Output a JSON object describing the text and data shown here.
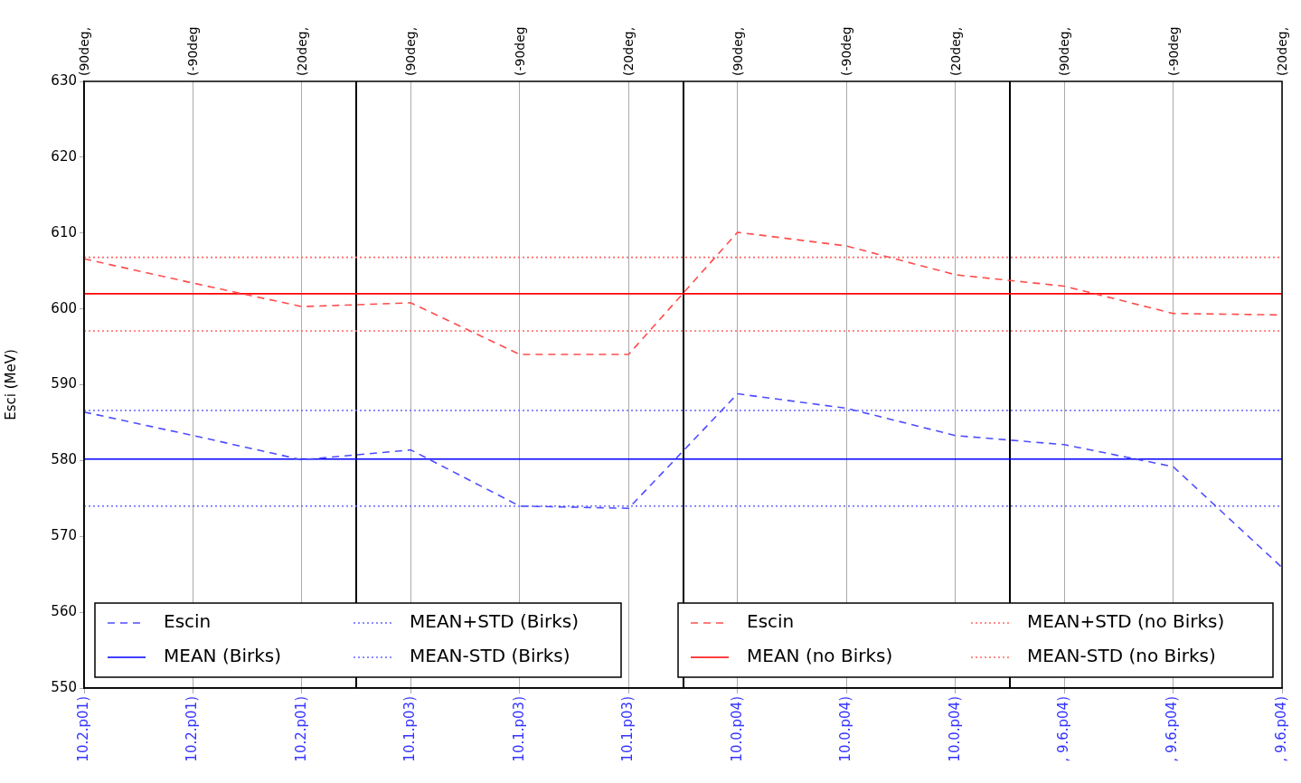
{
  "chart_data": {
    "type": "line",
    "ylabel": "Esci (MeV)",
    "categories": [
      "10.2.p01)",
      "10.2.p01)",
      "10.2.p01)",
      "10.1.p03)",
      "10.1.p03)",
      "10.1.p03)",
      "10.0.p04)",
      "10.0.p04)",
      "10.0.p04)",
      ", 9.6.p04)",
      ", 9.6.p04)",
      ", 9.6.p04)"
    ],
    "annotations": [
      "(90deg,",
      "(-90deg",
      "(20deg,",
      "(90deg,",
      "(-90deg",
      "(20deg,",
      "(90deg,",
      "(-90deg",
      "(20deg,",
      "(90deg,",
      "(-90deg",
      "(20deg,"
    ],
    "series": [
      {
        "name": "Escin",
        "color": "#4d4dff",
        "line_style": "dashed",
        "values": [
          586.4,
          583.3,
          580.1,
          581.4,
          574.0,
          573.7,
          588.8,
          586.9,
          583.3,
          582.1,
          579.2,
          565.9
        ]
      },
      {
        "name": "MEAN (Birks)",
        "color": "#0000ff",
        "line_style": "solid",
        "values": [
          580.2,
          580.2,
          580.2,
          580.2,
          580.2,
          580.2,
          580.2,
          580.2,
          580.2,
          580.2,
          580.2,
          580.2
        ]
      },
      {
        "name": "MEAN+STD (Birks)",
        "color": "#6666ff",
        "line_style": "dotted",
        "values": [
          586.6,
          586.6,
          586.6,
          586.6,
          586.6,
          586.6,
          586.6,
          586.6,
          586.6,
          586.6,
          586.6,
          586.6
        ]
      },
      {
        "name": "MEAN-STD (Birks)",
        "color": "#6666ff",
        "line_style": "dotted",
        "values": [
          574.0,
          574.0,
          574.0,
          574.0,
          574.0,
          574.0,
          574.0,
          574.0,
          574.0,
          574.0,
          574.0,
          574.0
        ]
      },
      {
        "name": "Escin",
        "color": "#ff4d4d",
        "line_style": "dashed",
        "values": [
          606.6,
          603.4,
          600.3,
          600.8,
          594.0,
          594.0,
          610.1,
          608.3,
          604.5,
          603.0,
          599.4,
          599.2
        ]
      },
      {
        "name": "MEAN (no Birks)",
        "color": "#ff0000",
        "line_style": "solid",
        "values": [
          602.0,
          602.0,
          602.0,
          602.0,
          602.0,
          602.0,
          602.0,
          602.0,
          602.0,
          602.0,
          602.0,
          602.0
        ]
      },
      {
        "name": "MEAN+STD (no Birks)",
        "color": "#ff6666",
        "line_style": "dotted",
        "values": [
          606.8,
          606.8,
          606.8,
          606.8,
          606.8,
          606.8,
          606.8,
          606.8,
          606.8,
          606.8,
          606.8,
          606.8
        ]
      },
      {
        "name": "MEAN-STD (no Birks)",
        "color": "#ff6666",
        "line_style": "dotted",
        "values": [
          597.1,
          597.1,
          597.1,
          597.1,
          597.1,
          597.1,
          597.1,
          597.1,
          597.1,
          597.1,
          597.1,
          597.1
        ]
      }
    ],
    "ylim": [
      550,
      630
    ],
    "yticks": [
      550,
      560,
      570,
      580,
      590,
      600,
      610,
      620,
      630
    ],
    "grid": "x",
    "legend": "bottom"
  }
}
